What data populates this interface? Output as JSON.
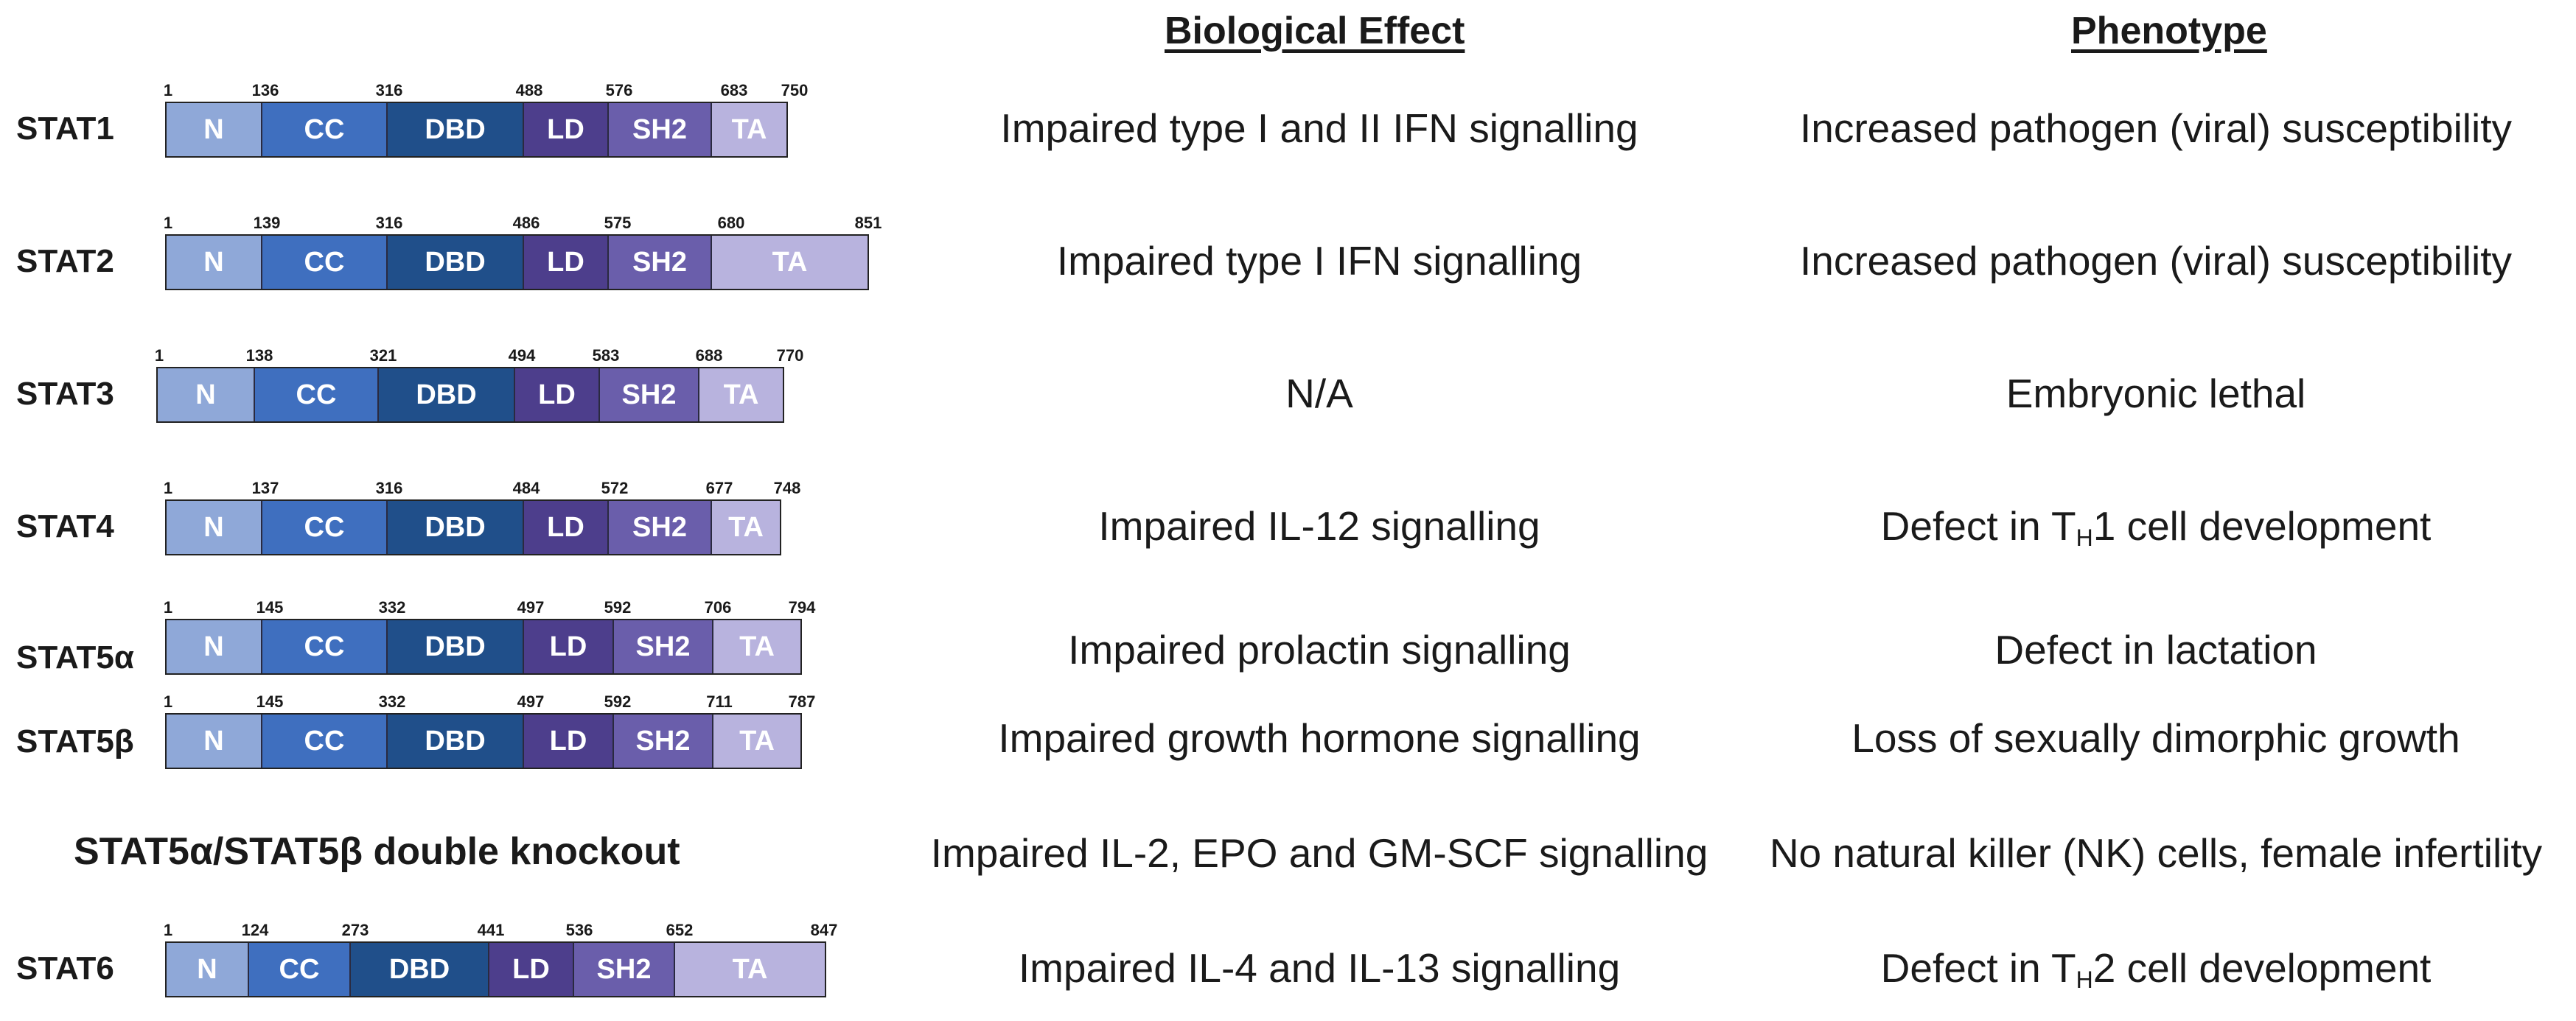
{
  "headers": {
    "effect": "Biological Effect",
    "phenotype": "Phenotype"
  },
  "colors": {
    "N": "#8fa8d8",
    "CC": "#3f6fbf",
    "DBD": "#204f8a",
    "LD": "#4d3e8c",
    "SH2": "#6a5eab",
    "TA": "#b8b3de"
  },
  "rows": [
    {
      "name": "STAT1",
      "positions": [
        "1",
        "136",
        "316",
        "488",
        "576",
        "683",
        "750"
      ],
      "domains": [
        "N",
        "CC",
        "DBD",
        "LD",
        "SH2",
        "TA"
      ],
      "effect": "Impaired type I and II IFN signalling",
      "phenotype": "Increased pathogen (viral) susceptibility"
    },
    {
      "name": "STAT2",
      "positions": [
        "1",
        "139",
        "316",
        "486",
        "575",
        "680",
        "851"
      ],
      "domains": [
        "N",
        "CC",
        "DBD",
        "LD",
        "SH2",
        "TA"
      ],
      "effect": "Impaired type I IFN signalling",
      "phenotype": "Increased pathogen (viral) susceptibility"
    },
    {
      "name": "STAT3",
      "positions": [
        "1",
        "138",
        "321",
        "494",
        "583",
        "688",
        "770"
      ],
      "domains": [
        "N",
        "CC",
        "DBD",
        "LD",
        "SH2",
        "TA"
      ],
      "effect": "N/A",
      "phenotype": "Embryonic lethal"
    },
    {
      "name": "STAT4",
      "positions": [
        "1",
        "137",
        "316",
        "484",
        "572",
        "677",
        "748"
      ],
      "domains": [
        "N",
        "CC",
        "DBD",
        "LD",
        "SH2",
        "TA"
      ],
      "effect": "Impaired IL-12 signalling",
      "phenotype_pre": "Defect in T",
      "phenotype_sub": "H",
      "phenotype_post": "1 cell development"
    },
    {
      "name": "STAT5α",
      "positions": [
        "1",
        "145",
        "332",
        "497",
        "592",
        "706",
        "794"
      ],
      "domains": [
        "N",
        "CC",
        "DBD",
        "LD",
        "SH2",
        "TA"
      ],
      "effect": "Impaired prolactin signalling",
      "phenotype": "Defect in lactation"
    },
    {
      "name": "STAT5β",
      "positions": [
        "1",
        "145",
        "332",
        "497",
        "592",
        "711",
        "787"
      ],
      "domains": [
        "N",
        "CC",
        "DBD",
        "LD",
        "SH2",
        "TA"
      ],
      "effect": "Impaired growth hormone signalling",
      "phenotype": "Loss of sexually dimorphic growth"
    },
    {
      "name": "STAT6",
      "positions": [
        "1",
        "124",
        "273",
        "441",
        "536",
        "652",
        "847"
      ],
      "domains": [
        "N",
        "CC",
        "DBD",
        "LD",
        "SH2",
        "TA"
      ],
      "effect": "Impaired IL-4 and IL-13 signalling",
      "phenotype_pre": "Defect in T",
      "phenotype_sub": "H",
      "phenotype_post": "2 cell development"
    }
  ],
  "double_knockout": {
    "label": "STAT5α/STAT5β double knockout",
    "effect": "Impaired IL-2, EPO and GM-SCF signalling",
    "phenotype": "No natural killer (NK) cells, female infertility"
  }
}
